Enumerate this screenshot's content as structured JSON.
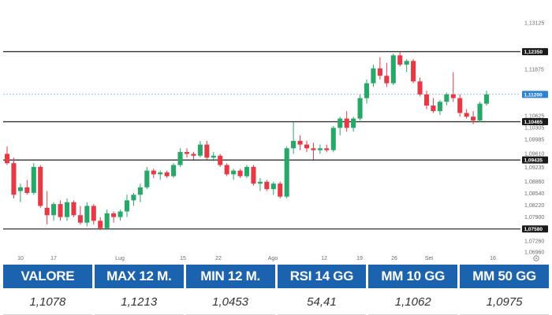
{
  "chart_data": {
    "type": "candlestick",
    "colors": {
      "up": "#27a869",
      "down": "#e53945",
      "level": "#333333",
      "last": "#2c83d6"
    },
    "x_ticks": [
      "10",
      "17",
      "Lug",
      "15",
      "22",
      "Ago",
      "12",
      "19",
      "26",
      "Set",
      "16"
    ],
    "y_ticks": [
      "1,13125",
      "1,11875",
      "1,10625",
      "1,10305",
      "1,09985",
      "1,09610",
      "1,09235",
      "1,08860",
      "1,08540",
      "1,08220",
      "1,07900",
      "1,07260",
      "1,06960"
    ],
    "levels": [
      {
        "label": "1,12350",
        "value": 1.1235
      },
      {
        "label": "1,10465",
        "value": 1.10465
      },
      {
        "label": "1,09435",
        "value": 1.09435
      },
      {
        "label": "1,07580",
        "value": 1.0758
      }
    ],
    "last_price": {
      "label": "1,11200",
      "value": 1.112
    },
    "candles": [
      [
        1.096,
        1.098,
        1.093,
        1.0935
      ],
      [
        1.0935,
        1.095,
        1.084,
        1.085
      ],
      [
        1.086,
        1.088,
        1.083,
        1.087
      ],
      [
        1.087,
        1.089,
        1.085,
        1.0855
      ],
      [
        1.0855,
        1.0935,
        1.085,
        1.0925
      ],
      [
        1.0925,
        1.093,
        1.0815,
        1.082
      ],
      [
        1.0815,
        1.086,
        1.077,
        1.0795
      ],
      [
        1.0795,
        1.083,
        1.078,
        1.0825
      ],
      [
        1.0825,
        1.0835,
        1.078,
        1.079
      ],
      [
        1.079,
        1.084,
        1.078,
        1.083
      ],
      [
        1.083,
        1.0835,
        1.079,
        1.0795
      ],
      [
        1.0795,
        1.082,
        1.077,
        1.0775
      ],
      [
        1.0775,
        1.083,
        1.0765,
        1.082
      ],
      [
        1.082,
        1.0825,
        1.077,
        1.078
      ],
      [
        1.078,
        1.079,
        1.0755,
        1.076
      ],
      [
        1.076,
        1.081,
        1.0755,
        1.08
      ],
      [
        1.08,
        1.0805,
        1.0775,
        1.079
      ],
      [
        1.079,
        1.081,
        1.078,
        1.0805
      ],
      [
        1.0805,
        1.085,
        1.079,
        1.0835
      ],
      [
        1.0835,
        1.0855,
        1.082,
        1.085
      ],
      [
        1.085,
        1.088,
        1.083,
        1.087
      ],
      [
        1.087,
        1.0925,
        1.0865,
        1.0915
      ],
      [
        1.0915,
        1.092,
        1.0895,
        1.0905
      ],
      [
        1.0905,
        1.0915,
        1.089,
        1.091
      ],
      [
        1.091,
        1.0915,
        1.0895,
        1.09
      ],
      [
        1.09,
        1.0935,
        1.0895,
        1.093
      ],
      [
        1.093,
        1.0975,
        1.0925,
        1.0965
      ],
      [
        1.0965,
        1.0975,
        1.095,
        1.096
      ],
      [
        1.096,
        1.0965,
        1.0945,
        1.0955
      ],
      [
        1.0955,
        1.0995,
        1.095,
        1.0985
      ],
      [
        1.0985,
        1.0995,
        1.0945,
        1.095
      ],
      [
        1.095,
        1.0965,
        1.094,
        1.0955
      ],
      [
        1.0955,
        1.096,
        1.0925,
        1.093
      ],
      [
        1.093,
        1.0935,
        1.09,
        1.0905
      ],
      [
        1.0905,
        1.092,
        1.089,
        1.0915
      ],
      [
        1.0915,
        1.092,
        1.0895,
        1.09
      ],
      [
        1.09,
        1.093,
        1.0895,
        1.0925
      ],
      [
        1.0925,
        1.093,
        1.0875,
        1.088
      ],
      [
        1.088,
        1.0895,
        1.086,
        1.0885
      ],
      [
        1.0885,
        1.089,
        1.086,
        1.0865
      ],
      [
        1.0865,
        1.0885,
        1.085,
        1.088
      ],
      [
        1.088,
        1.0885,
        1.084,
        1.0845
      ],
      [
        1.0845,
        1.098,
        1.084,
        1.0975
      ],
      [
        1.0975,
        1.1045,
        1.096,
        1.0995
      ],
      [
        1.0995,
        1.101,
        1.097,
        1.0985
      ],
      [
        1.0985,
        1.0995,
        1.0965,
        1.0975
      ],
      [
        1.0975,
        1.099,
        1.0945,
        1.097
      ],
      [
        1.097,
        1.0985,
        1.096,
        1.0975
      ],
      [
        1.0975,
        1.0985,
        1.0965,
        1.097
      ],
      [
        1.097,
        1.1035,
        1.0965,
        1.103
      ],
      [
        1.103,
        1.106,
        1.101,
        1.1055
      ],
      [
        1.1055,
        1.1075,
        1.102,
        1.103
      ],
      [
        1.103,
        1.106,
        1.102,
        1.1055
      ],
      [
        1.1055,
        1.112,
        1.105,
        1.111
      ],
      [
        1.111,
        1.116,
        1.1095,
        1.115
      ],
      [
        1.115,
        1.12,
        1.114,
        1.119
      ],
      [
        1.119,
        1.122,
        1.116,
        1.117
      ],
      [
        1.117,
        1.1205,
        1.114,
        1.115
      ],
      [
        1.115,
        1.123,
        1.1145,
        1.1225
      ],
      [
        1.1225,
        1.1235,
        1.1195,
        1.12
      ],
      [
        1.12,
        1.1215,
        1.118,
        1.121
      ],
      [
        1.121,
        1.1215,
        1.115,
        1.1155
      ],
      [
        1.1155,
        1.1165,
        1.1115,
        1.112
      ],
      [
        1.112,
        1.113,
        1.108,
        1.109
      ],
      [
        1.109,
        1.111,
        1.107,
        1.1075
      ],
      [
        1.1075,
        1.1105,
        1.1065,
        1.11
      ],
      [
        1.11,
        1.1125,
        1.109,
        1.112
      ],
      [
        1.112,
        1.118,
        1.11,
        1.111
      ],
      [
        1.111,
        1.112,
        1.106,
        1.107
      ],
      [
        1.107,
        1.108,
        1.1055,
        1.106
      ],
      [
        1.106,
        1.1075,
        1.104,
        1.105
      ],
      [
        1.105,
        1.11,
        1.1045,
        1.1095
      ],
      [
        1.1095,
        1.113,
        1.109,
        1.112
      ]
    ]
  },
  "stats": [
    {
      "label": "VALORE",
      "value": "1,1078"
    },
    {
      "label": "MAX 12 M.",
      "value": "1,1213"
    },
    {
      "label": "MIN 12 M.",
      "value": "1,0453"
    },
    {
      "label": "RSI 14 GG",
      "value": "54,41"
    },
    {
      "label": "MM 10 GG",
      "value": "1,1062"
    },
    {
      "label": "MM 50 GG",
      "value": "1,0975"
    }
  ]
}
